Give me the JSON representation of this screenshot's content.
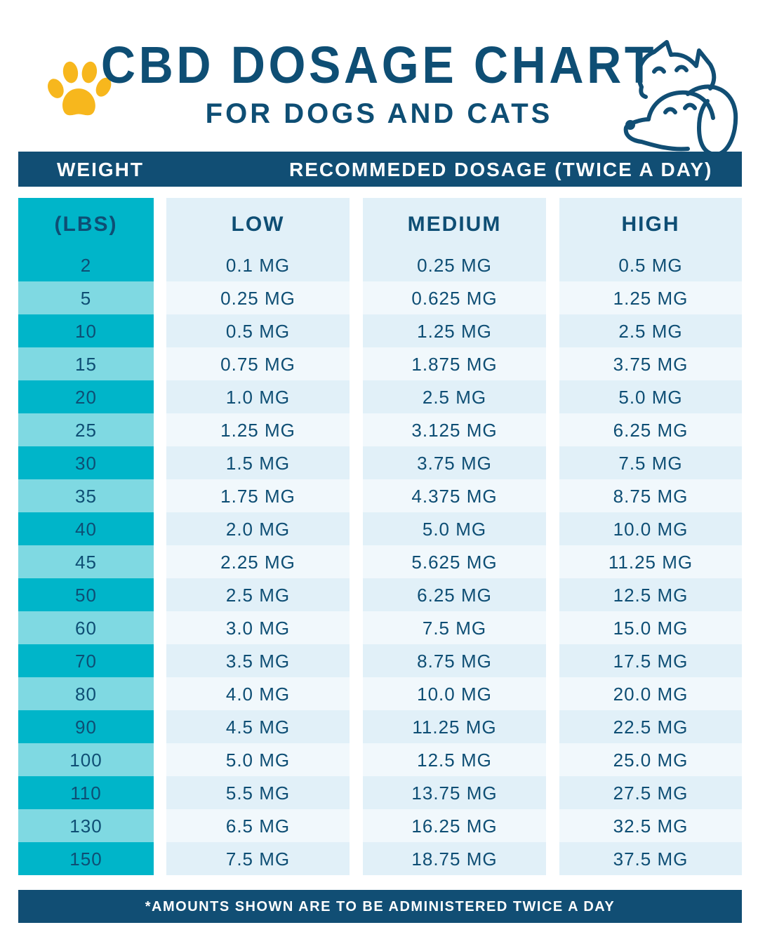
{
  "title": "CBD DOSAGE CHART",
  "subtitle": "FOR DOGS AND CATS",
  "header": {
    "weight": "WEIGHT",
    "recommended": "RECOMMEDED DOSAGE (TWICE A DAY)"
  },
  "footer": "*AMOUNTS SHOWN ARE TO BE ADMINISTERED TWICE A DAY",
  "colors": {
    "navy": "#114e74",
    "teal": "#00b5c9",
    "light_teal": "#7fd9e2",
    "paw": "#f7b71d"
  },
  "icons": [
    "paw-icon",
    "cat-and-dog-icon"
  ],
  "chart_data": {
    "type": "table",
    "title": "CBD DOSAGE CHART",
    "subtitle": "FOR DOGS AND CATS",
    "columns": [
      "(LBS)",
      "LOW",
      "MEDIUM",
      "HIGH"
    ],
    "weights": [
      "2",
      "5",
      "10",
      "15",
      "20",
      "25",
      "30",
      "35",
      "40",
      "45",
      "50",
      "60",
      "70",
      "80",
      "90",
      "100",
      "110",
      "130",
      "150"
    ],
    "low": [
      "0.1 MG",
      "0.25 MG",
      "0.5 MG",
      "0.75 MG",
      "1.0 MG",
      "1.25 MG",
      "1.5 MG",
      "1.75 MG",
      "2.0 MG",
      "2.25 MG",
      "2.5 MG",
      "3.0 MG",
      "3.5 MG",
      "4.0 MG",
      "4.5 MG",
      "5.0 MG",
      "5.5 MG",
      "6.5 MG",
      "7.5 MG"
    ],
    "medium": [
      "0.25 MG",
      "0.625 MG",
      "1.25 MG",
      "1.875 MG",
      "2.5 MG",
      "3.125 MG",
      "3.75 MG",
      "4.375 MG",
      "5.0 MG",
      "5.625 MG",
      "6.25 MG",
      "7.5 MG",
      "8.75 MG",
      "10.0 MG",
      "11.25 MG",
      "12.5 MG",
      "13.75 MG",
      "16.25 MG",
      "18.75 MG"
    ],
    "high": [
      "0.5 MG",
      "1.25 MG",
      "2.5 MG",
      "3.75 MG",
      "5.0 MG",
      "6.25 MG",
      "7.5 MG",
      "8.75 MG",
      "10.0 MG",
      "11.25 MG",
      "12.5 MG",
      "15.0 MG",
      "17.5 MG",
      "20.0 MG",
      "22.5 MG",
      "25.0 MG",
      "27.5 MG",
      "32.5 MG",
      "37.5 MG"
    ]
  }
}
